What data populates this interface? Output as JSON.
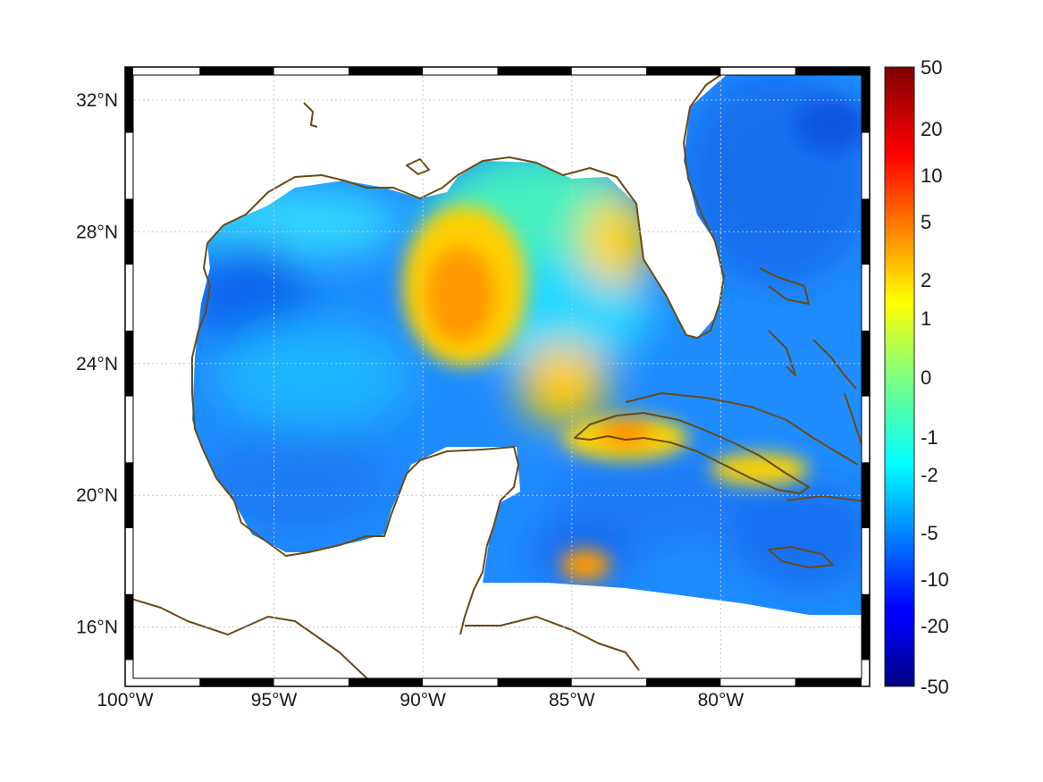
{
  "map": {
    "lon_range": [
      -100,
      -75
    ],
    "lat_range": [
      14.2,
      33
    ],
    "lon_ticks": [
      {
        "value": -100,
        "label": "100°W"
      },
      {
        "value": -95,
        "label": "95°W"
      },
      {
        "value": -90,
        "label": "90°W"
      },
      {
        "value": -85,
        "label": "85°W"
      },
      {
        "value": -80,
        "label": "80°W"
      }
    ],
    "lat_ticks": [
      {
        "value": 32,
        "label": "32°N"
      },
      {
        "value": 28,
        "label": "28°N"
      },
      {
        "value": 24,
        "label": "24°N"
      },
      {
        "value": 20,
        "label": "20°N"
      },
      {
        "value": 16,
        "label": "16°N"
      }
    ],
    "grid": true,
    "coastline_color": "#6b4a12",
    "colormap": "jet",
    "land_color": "#ffffff"
  },
  "colorbar": {
    "placement": "right",
    "labels": [
      "50",
      "20",
      "10",
      "5",
      "2",
      "1",
      "0",
      "-1",
      "-2",
      "-5",
      "-10",
      "-20",
      "-50"
    ]
  }
}
